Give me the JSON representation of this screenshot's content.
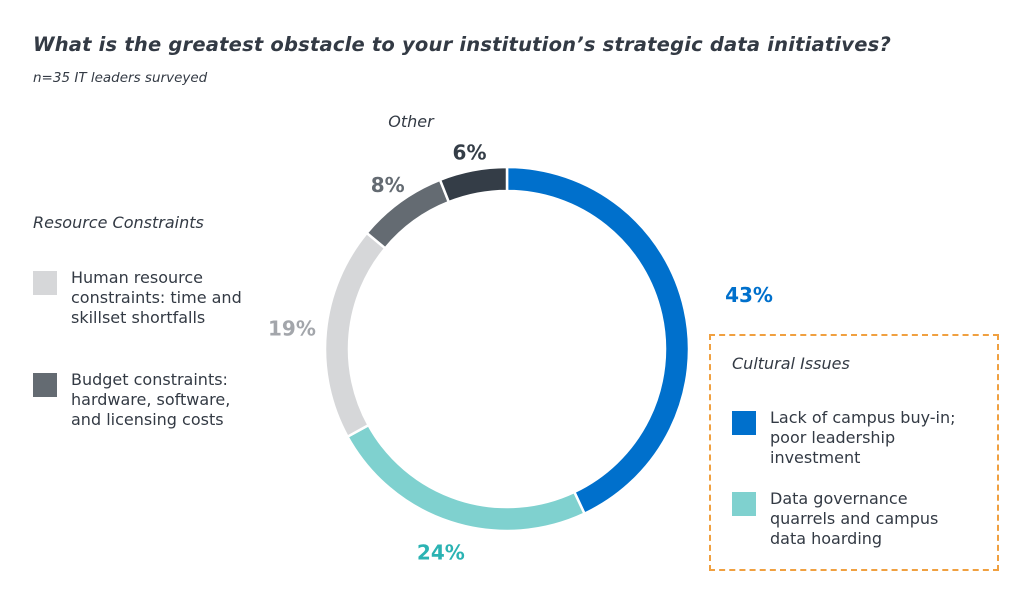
{
  "title": "What is the greatest obstacle to your institution’s strategic data initiatives?",
  "subtitle": "n=35 IT leaders surveyed",
  "colors": {
    "blue": "#0070cc",
    "teal": "#7fd1cf",
    "light_gray": "#d6d7d9",
    "mid_gray": "#646b72",
    "dark": "#343d47",
    "box_border": "#f0a040"
  },
  "legend": {
    "resource": {
      "title": "Resource Constraints",
      "items": [
        {
          "label": "Human resource constraints: time and skillset shortfalls",
          "color": "#d6d7d9"
        },
        {
          "label": "Budget constraints: hardware, software, and licensing costs",
          "color": "#646b72"
        }
      ]
    },
    "cultural": {
      "title": "Cultural Issues",
      "items": [
        {
          "label": "Lack of campus buy-in; poor leadership investment",
          "color": "#0070cc"
        },
        {
          "label": "Data governance quarrels and campus data hoarding",
          "color": "#7fd1cf"
        }
      ]
    }
  },
  "chart_data": {
    "type": "pie",
    "style": "donut",
    "slices": [
      {
        "label": "Lack of campus buy-in; poor leadership investment",
        "value": 43,
        "display": "43%",
        "color": "#0070cc",
        "label_color": "#0070cc"
      },
      {
        "label": "Data governance quarrels and campus data hoarding",
        "value": 24,
        "display": "24%",
        "color": "#7fd1cf",
        "label_color": "#2bb3b3"
      },
      {
        "label": "Human resource constraints: time and skillset shortfalls",
        "value": 19,
        "display": "19%",
        "color": "#d6d7d9",
        "label_color": "#a3a6ab"
      },
      {
        "label": "Budget constraints: hardware, software, and licensing costs",
        "value": 8,
        "display": "8%",
        "color": "#646b72",
        "label_color": "#646b72"
      },
      {
        "label": "Other",
        "value": 6,
        "display": "6%",
        "color": "#343d47",
        "label_color": "#343d47"
      }
    ],
    "other_label": "Other"
  }
}
